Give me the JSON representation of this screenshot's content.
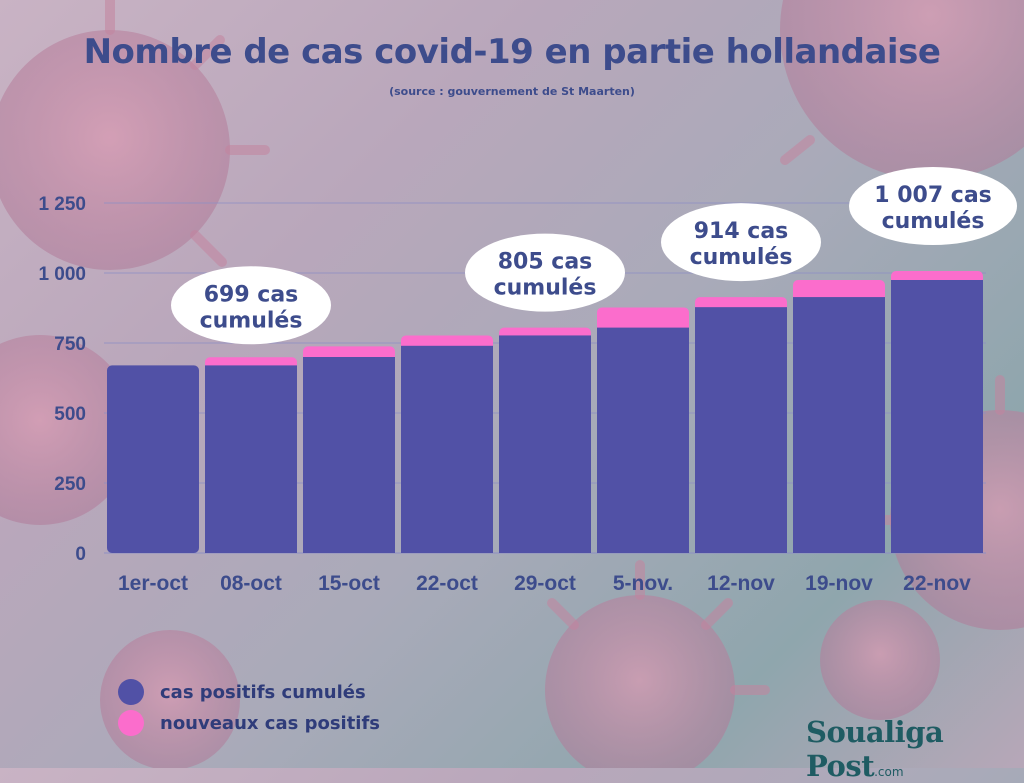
{
  "header": {
    "title": "Nombre de cas covid-19 en partie hollandaise",
    "subtitle": "(source : gouvernement de St Maarten)"
  },
  "colors": {
    "cumulative": "#5151a6",
    "new": "#fb6dcc",
    "text": "#3d4c8c",
    "grid": "#8e8fc4"
  },
  "legend": {
    "items": [
      {
        "label": "cas positifs cumulés",
        "color": "#5151a6"
      },
      {
        "label": "nouveaux cas positifs",
        "color": "#fb6dcc"
      }
    ]
  },
  "brand": {
    "name": "Soualiga Post",
    "suffix": ".com"
  },
  "chart_data": {
    "type": "bar",
    "stacked": true,
    "title": "Nombre de cas covid-19 en partie hollandaise",
    "subtitle": "(source : gouvernement de St Maarten)",
    "categories": [
      "1er-oct",
      "08-oct",
      "15-oct",
      "22-oct",
      "29-oct",
      "5-nov.",
      "12-nov",
      "19-nov",
      "22-nov"
    ],
    "series": [
      {
        "name": "cas positifs cumulés",
        "values": [
          670,
          670,
          700,
          740,
          777,
          805,
          878,
          914,
          975
        ]
      },
      {
        "name": "nouveaux cas positifs",
        "values": [
          0,
          29,
          38,
          37,
          28,
          72,
          36,
          61,
          32
        ]
      }
    ],
    "ylim": [
      0,
      1250
    ],
    "yticks": [
      0,
      250,
      500,
      750,
      1000,
      1250
    ],
    "ytick_labels": [
      "0",
      "250",
      "500",
      "750",
      "1 000",
      "1 250"
    ],
    "grid": true,
    "legend_position": "bottom-left",
    "annotations": [
      {
        "category_index": 1,
        "line1": "699 cas",
        "line2": "cumulés"
      },
      {
        "category_index": 4,
        "line1": "805 cas",
        "line2": "cumulés"
      },
      {
        "category_index": 6,
        "line1": "914 cas",
        "line2": "cumulés"
      },
      {
        "category_index": 8,
        "line1": "1 007 cas",
        "line2": "cumulés"
      }
    ]
  }
}
